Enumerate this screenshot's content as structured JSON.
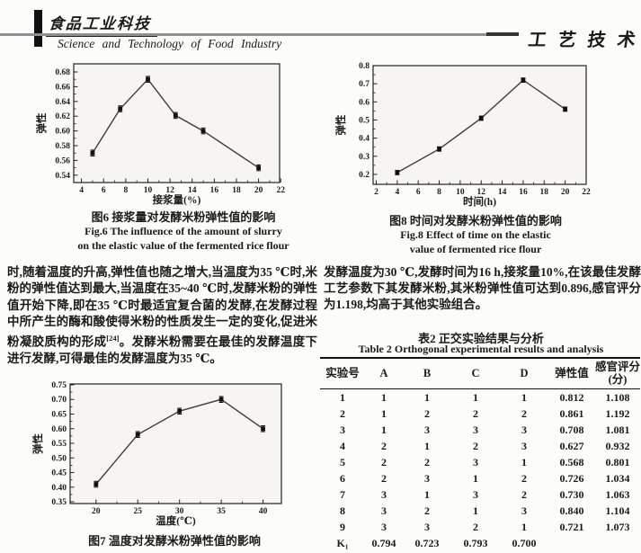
{
  "header": {
    "logo_text": "食品工业科技",
    "journal_name_en": "Science and Technology of Food Industry",
    "section_label": "工艺技术"
  },
  "figures": {
    "fig6": {
      "caption_cn": "图6 接浆量对发酵米粉弹性值的影响",
      "caption_en_1": "Fig.6 The influence of the amount of slurry",
      "caption_en_2": "on the elastic value of the fermented rice flour"
    },
    "fig7": {
      "caption_cn": "图7 温度对发酵米粉弹性值的影响"
    },
    "fig8": {
      "caption_cn": "图8 时间对发酵米粉弹性值的影响",
      "caption_en_1": "Fig.8 Effect of time on the elastic",
      "caption_en_2": "value of fermented rice flour"
    }
  },
  "left_column": {
    "paragraph": {
      "pre": "时,随着温度的升高,弹性值也随之增大,当温度为35 ℃时,米粉的弹性值达到最大,当温度在35~40 ℃时,发酵米粉的弹性值开始下降,即在35 ℃时最适宜复合菌的发酵,在发酵过程中所产生的酶和酸使得米粉的性质发生一定的变化,促进米粉凝胶质构的形成",
      "sup": "[24]",
      "post": "。发酵米粉需要在最佳的发酵温度下进行发酵,可得最佳的发酵温度为35 ℃。"
    }
  },
  "right_column": {
    "paragraph": "发酵温度为30 ℃,发酵时间为16 h,接浆量10%,在该最佳发酵工艺参数下其发酵米粉,其米粉弹性值可达到0.896,感官评分为1.198,均高于其他实验组合。"
  },
  "table2": {
    "title_cn": "表2 正交实验结果与分析",
    "title_en": "Table 2 Orthogonal experimental results and analysis",
    "headers": [
      "实验号",
      "A",
      "B",
      "C",
      "D",
      "弹性值",
      "感官评分\n(分)"
    ],
    "rows": [
      [
        "1",
        "1",
        "1",
        "1",
        "1",
        "0.812",
        "1.108"
      ],
      [
        "2",
        "1",
        "2",
        "2",
        "2",
        "0.861",
        "1.192"
      ],
      [
        "3",
        "1",
        "3",
        "3",
        "3",
        "0.708",
        "1.081"
      ],
      [
        "4",
        "2",
        "1",
        "2",
        "3",
        "0.627",
        "0.932"
      ],
      [
        "5",
        "2",
        "2",
        "3",
        "1",
        "0.568",
        "0.801"
      ],
      [
        "6",
        "2",
        "3",
        "1",
        "2",
        "0.726",
        "1.034"
      ],
      [
        "7",
        "3",
        "1",
        "3",
        "2",
        "0.730",
        "1.063"
      ],
      [
        "8",
        "3",
        "2",
        "1",
        "3",
        "0.840",
        "1.104"
      ],
      [
        "9",
        "3",
        "3",
        "2",
        "1",
        "0.721",
        "1.073"
      ],
      [
        "K₁",
        "0.794",
        "0.723",
        "0.793",
        "0.700",
        "",
        ""
      ]
    ]
  },
  "chart_data": [
    {
      "id": "fig6",
      "type": "line",
      "title": "图6 接浆量对发酵米粉弹性值的影响",
      "xlabel": "接浆量(%)",
      "ylabel": "弹性",
      "xlim": [
        3.3,
        21.9
      ],
      "ylim": [
        0.53,
        0.691
      ],
      "xticks": [
        "4",
        "6",
        "8",
        "10",
        "12",
        "14",
        "16",
        "18",
        "20",
        "22"
      ],
      "yticks": [
        "0.54",
        "0.56",
        "0.58",
        "0.60",
        "0.62",
        "0.64",
        "0.66",
        "0.68"
      ],
      "x": [
        5,
        7.5,
        10,
        12.5,
        15,
        20
      ],
      "y": [
        0.57,
        0.63,
        0.67,
        0.621,
        0.6,
        0.55
      ],
      "yerr": 0.004,
      "grid": false,
      "legend": false
    },
    {
      "id": "fig8",
      "type": "line",
      "title": "图8 时间对发酵米粉弹性值的影响",
      "xlabel": "时间(h)",
      "ylabel": "弹性",
      "xlim": [
        1.7,
        22.0
      ],
      "ylim": [
        0.145,
        0.8
      ],
      "xticks": [
        "2",
        "4",
        "6",
        "8",
        "10",
        "12",
        "14",
        "16",
        "18",
        "20",
        "22"
      ],
      "yticks": [
        "0.2",
        "0.3",
        "0.4",
        "0.5",
        "0.6",
        "0.7",
        "0.8"
      ],
      "x": [
        4,
        8,
        12,
        16,
        20
      ],
      "y": [
        0.21,
        0.34,
        0.51,
        0.72,
        0.56
      ],
      "yerr": 0.012,
      "grid": false,
      "legend": false
    },
    {
      "id": "fig7",
      "type": "line",
      "title": "图7 温度对发酵米粉弹性值的影响",
      "xlabel": "温度(℃)",
      "ylabel": "弹性",
      "xlim": [
        16.9,
        42.2
      ],
      "ylim": [
        0.344,
        0.753
      ],
      "xticks": [
        "20",
        "25",
        "30",
        "35",
        "40"
      ],
      "yticks": [
        "0.35",
        "0.40",
        "0.45",
        "0.50",
        "0.55",
        "0.60",
        "0.65",
        "0.70",
        "0.75"
      ],
      "x": [
        20,
        25,
        30,
        35,
        40
      ],
      "y": [
        0.41,
        0.58,
        0.66,
        0.7,
        0.6
      ],
      "yerr": 0.01,
      "grid": false,
      "legend": false
    }
  ]
}
